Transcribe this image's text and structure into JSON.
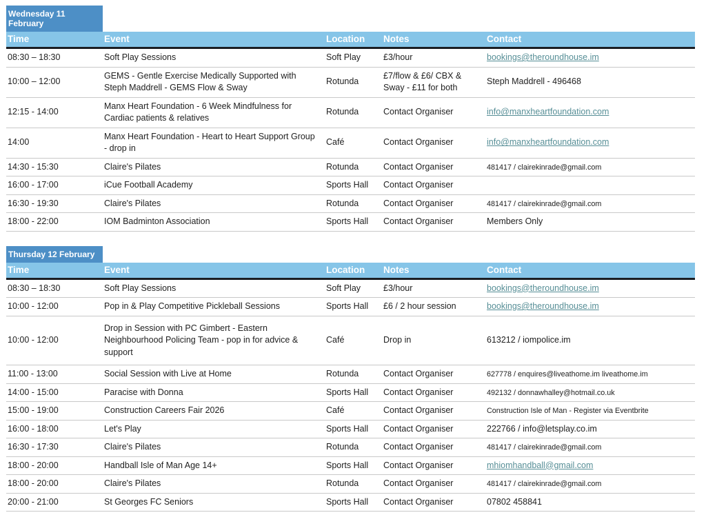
{
  "theme": {
    "tab_color": "#4D8FC6",
    "header_color": "#86C5E8",
    "header_border_color": "#1A1E23",
    "row_border_color": "#C8C8C8",
    "link_color": "#568E96",
    "text_color": "#212121"
  },
  "columns": [
    "Time",
    "Event",
    "Location",
    "Notes",
    "Contact"
  ],
  "days": [
    {
      "title": "Wednesday 11 February",
      "rows": [
        {
          "time": "08:30 – 18:30",
          "event": "Soft Play Sessions",
          "location": "Soft Play",
          "notes": "£3/hour",
          "contact": "bookings@theroundhouse.im",
          "contact_type": "link"
        },
        {
          "time": "10:00 – 12:00",
          "event": "GEMS - Gentle Exercise Medically Supported with Steph Maddrell - GEMS Flow & Sway",
          "location": "Rotunda",
          "notes": "£7/flow & £6/ CBX & Sway - £11 for both",
          "contact": "Steph Maddrell - 496468",
          "contact_type": "text"
        },
        {
          "time": "12:15 - 14:00",
          "event": "Manx Heart Foundation - 6 Week Mindfulness for Cardiac patients & relatives",
          "location": "Rotunda",
          "notes": "Contact Organiser",
          "contact": "info@manxheartfoundation.com",
          "contact_type": "link"
        },
        {
          "time": "14:00",
          "event": "Manx Heart Foundation - Heart to Heart Support Group - drop in",
          "location": "Café",
          "notes": "Contact Organiser",
          "contact": "info@manxheartfoundation.com",
          "contact_type": "link"
        },
        {
          "time": "14:30 - 15:30",
          "event": "Claire's Pilates",
          "location": "Rotunda",
          "notes": "Contact Organiser",
          "contact": "481417 / clairekinrade@gmail.com",
          "contact_type": "small"
        },
        {
          "time": "16:00 - 17:00",
          "event": "iCue Football Academy",
          "location": "Sports Hall",
          "notes": "Contact Organiser",
          "contact": "",
          "contact_type": "text"
        },
        {
          "time": "16:30 - 19:30",
          "event": "Claire's Pilates",
          "location": "Rotunda",
          "notes": "Contact Organiser",
          "contact": "481417 / clairekinrade@gmail.com",
          "contact_type": "small"
        },
        {
          "time": "18:00 - 22:00",
          "event": "IOM Badminton Association",
          "location": "Sports Hall",
          "notes": "Contact Organiser",
          "contact": "Members Only",
          "contact_type": "text"
        }
      ]
    },
    {
      "title": "Thursday 12 February",
      "rows": [
        {
          "time": "08:30 – 18:30",
          "event": "Soft Play Sessions",
          "location": "Soft Play",
          "notes": "£3/hour",
          "contact": "bookings@theroundhouse.im",
          "contact_type": "link"
        },
        {
          "time": "10:00 - 12:00",
          "event": "Pop in & Play Competitive Pickleball Sessions",
          "location": "Sports Hall",
          "notes": "£6 / 2 hour session",
          "contact": "bookings@theroundhouse.im",
          "contact_type": "link"
        },
        {
          "time": "10:00 - 12:00",
          "event": "Drop in Session with PC Gimbert - Eastern Neighbourhood Policing Team - pop in for advice & support",
          "location": "Café",
          "notes": "Drop in",
          "contact": "613212 / iompolice.im",
          "contact_type": "text",
          "tall": true
        },
        {
          "time": "11:00 - 13:00",
          "event": "Social Session with Live at Home",
          "location": "Rotunda",
          "notes": "Contact Organiser",
          "contact": "627778 / enquires@liveathome.im liveathome.im",
          "contact_type": "small"
        },
        {
          "time": "14:00 - 15:00",
          "event": "Paracise with Donna",
          "location": "Sports Hall",
          "notes": "Contact Organiser",
          "contact": "492132 / donnawhalley@hotmail.co.uk",
          "contact_type": "small"
        },
        {
          "time": "15:00 - 19:00",
          "event": "Construction Careers Fair 2026",
          "location": "Café",
          "notes": "Contact Organiser",
          "contact": "Construction Isle of Man - Register via Eventbrite",
          "contact_type": "small"
        },
        {
          "time": "16:00 - 18:00",
          "event": "Let's Play",
          "location": "Sports Hall",
          "notes": "Contact Organiser",
          "contact": "222766 / info@letsplay.co.im",
          "contact_type": "text"
        },
        {
          "time": "16:30 - 17:30",
          "event": "Claire's Pilates",
          "location": "Rotunda",
          "notes": "Contact Organiser",
          "contact": "481417 / clairekinrade@gmail.com",
          "contact_type": "small"
        },
        {
          "time": "18:00 - 20:00",
          "event": "Handball Isle of Man Age 14+",
          "location": "Sports Hall",
          "notes": "Contact Organiser",
          "contact": "mhiomhandball@gmail.com",
          "contact_type": "link"
        },
        {
          "time": "18:00 - 20:00",
          "event": "Claire's Pilates",
          "location": "Rotunda",
          "notes": "Contact Organiser",
          "contact": "481417 / clairekinrade@gmail.com",
          "contact_type": "small"
        },
        {
          "time": "20:00 - 21:00",
          "event": "St Georges FC Seniors",
          "location": "Sports Hall",
          "notes": "Contact Organiser",
          "contact": "07802 458841",
          "contact_type": "text"
        }
      ]
    }
  ]
}
